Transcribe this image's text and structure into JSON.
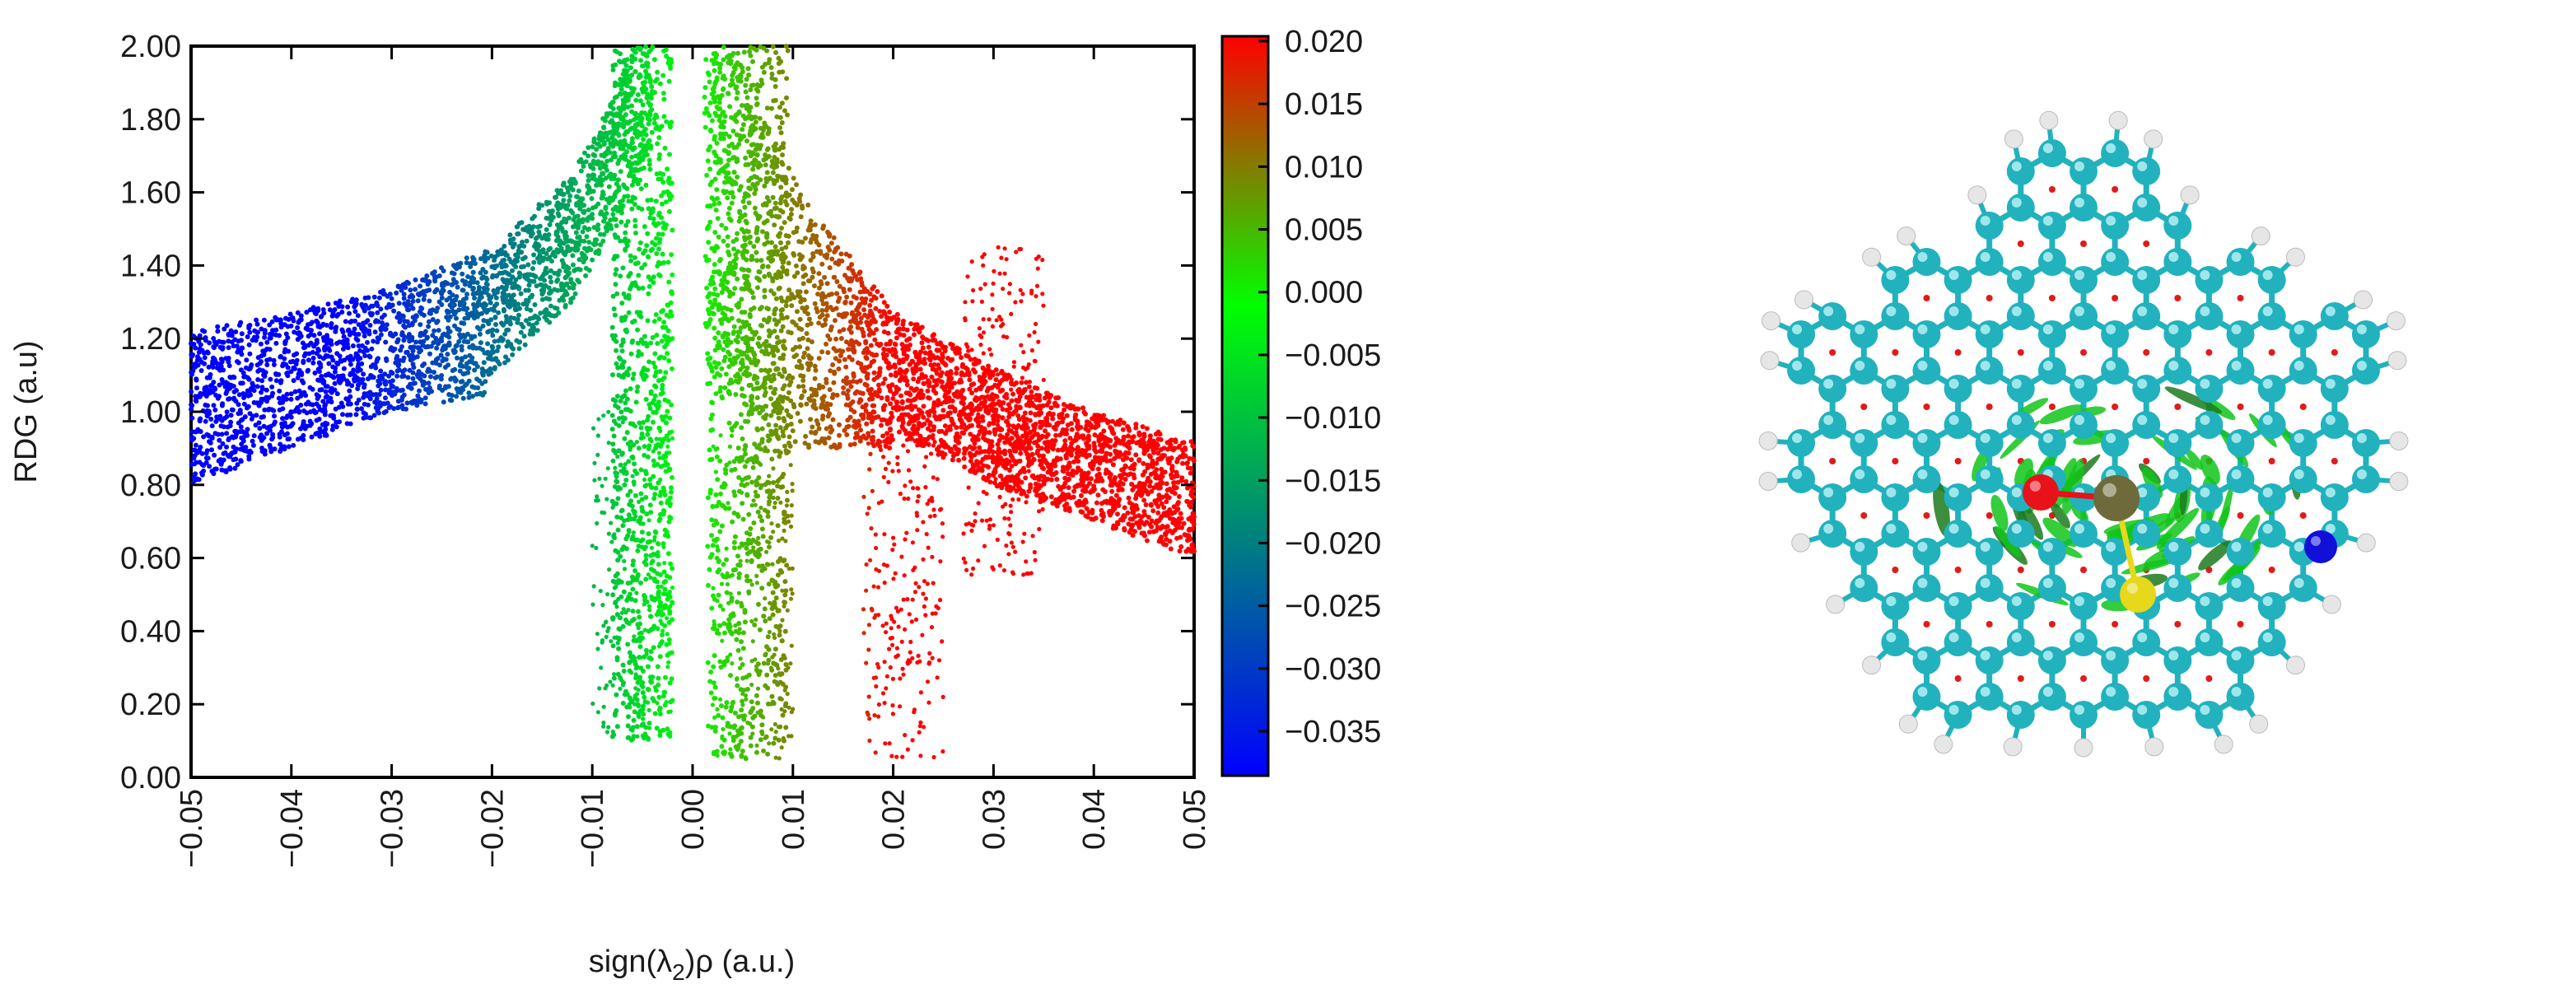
{
  "chart_data": {
    "type": "scatter",
    "xlabel_prefix": "sign(λ",
    "xlabel_sub": "2",
    "xlabel_suffix": ")ρ (a.u.)",
    "ylabel": "RDG (a.u)",
    "xlim": [
      -0.05,
      0.05
    ],
    "ylim": [
      0.0,
      2.0
    ],
    "grid": false,
    "x_ticks": [
      "−0.05",
      "−0.04",
      "−0.03",
      "−0.02",
      "−0.01",
      "0.00",
      "0.01",
      "0.02",
      "0.03",
      "0.04",
      "0.05"
    ],
    "y_ticks": [
      "0.00",
      "0.20",
      "0.40",
      "0.60",
      "0.80",
      "1.00",
      "1.20",
      "1.40",
      "1.60",
      "1.80",
      "2.00"
    ],
    "colorbar": {
      "range": [
        -0.035,
        0.02
      ],
      "ticks": [
        "0.020",
        "0.015",
        "0.010",
        "0.005",
        "0.000",
        "−0.005",
        "−0.010",
        "−0.015",
        "−0.020",
        "−0.025",
        "−0.030",
        "−0.035"
      ],
      "colors": [
        "#0000ff",
        "#00ff00",
        "#ff0000"
      ],
      "color_stops": [
        -0.035,
        0.0,
        0.02
      ]
    },
    "point_cloud": {
      "description_source": "density of sign(λ2)ρ vs RDG",
      "envelope_upper": [
        [
          -0.05,
          1.22
        ],
        [
          -0.04,
          1.27
        ],
        [
          -0.03,
          1.34
        ],
        [
          -0.02,
          1.45
        ],
        [
          -0.012,
          1.65
        ],
        [
          -0.008,
          1.85
        ],
        [
          -0.006,
          2.0
        ]
      ],
      "envelope_lower": [
        [
          -0.05,
          0.8
        ],
        [
          -0.04,
          0.9
        ],
        [
          -0.03,
          1.0
        ],
        [
          -0.02,
          1.05
        ]
      ],
      "right_upper": [
        [
          0.004,
          2.0
        ],
        [
          0.008,
          1.75
        ],
        [
          0.012,
          1.55
        ],
        [
          0.02,
          1.28
        ],
        [
          0.03,
          1.12
        ],
        [
          0.04,
          1.0
        ],
        [
          0.05,
          0.92
        ]
      ],
      "right_lower": [
        [
          0.02,
          0.95
        ],
        [
          0.03,
          0.8
        ],
        [
          0.04,
          0.7
        ],
        [
          0.05,
          0.6
        ]
      ],
      "spikes": [
        {
          "x": -0.006,
          "min": 0.1,
          "color": "green"
        },
        {
          "x": 0.006,
          "min": 0.05,
          "color": "olive"
        },
        {
          "x": 0.021,
          "min": 0.05,
          "color": "red"
        },
        {
          "x": 0.031,
          "min": 0.55,
          "color": "red"
        }
      ]
    }
  },
  "molecule": {
    "atom_colors": {
      "carbon": "#21b2bd",
      "hydrogen": "#e6e6e6",
      "oxygen": "#e8121a",
      "nitrogen": "#1010d8",
      "sulfur": "#e6d81a",
      "metal": "#6e6a3c"
    },
    "isosurface_colors": [
      "#11c41a",
      "#e21a1a",
      "#1d7a1d"
    ]
  }
}
